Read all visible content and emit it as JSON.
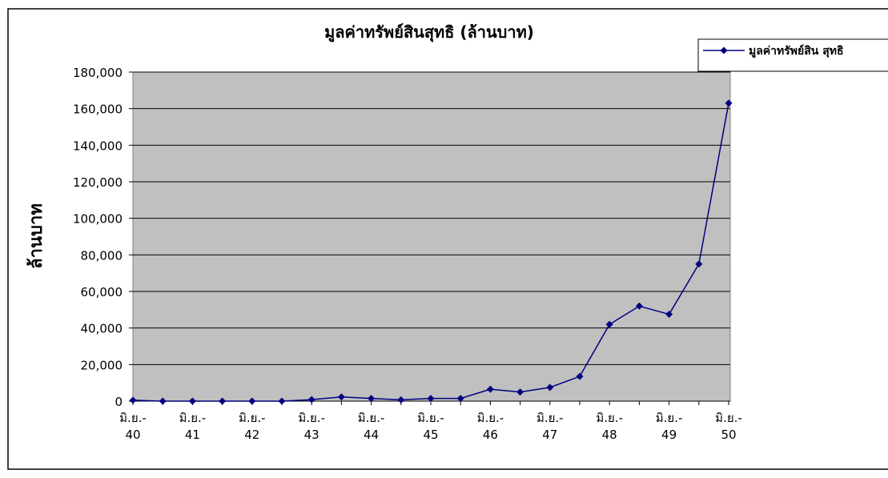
{
  "chart_data": {
    "type": "line",
    "title": "มูลค่าทรัพย์สินสุทธิ (ล้านบาท)",
    "y_label": "ล้านบาท",
    "categories": [
      "มิ.ย.-\n40",
      null,
      "มิ.ย.-\n41",
      null,
      "มิ.ย.-\n42",
      null,
      "มิ.ย.-\n43",
      null,
      "มิ.ย.-\n44",
      null,
      "มิ.ย.-\n45",
      null,
      "มิ.ย.-\n46",
      null,
      "มิ.ย.-\n47",
      null,
      "มิ.ย.-\n48",
      null,
      "มิ.ย.-\n49",
      null,
      "มิ.ย.-\n50"
    ],
    "series": [
      {
        "name": "มูลค่าทรัพย์สิน สุทธิ",
        "color": "#000080",
        "values": [
          500,
          0,
          0,
          0,
          0,
          0,
          800,
          2300,
          1500,
          700,
          1500,
          1500,
          6500,
          5000,
          7500,
          13500,
          42000,
          52000,
          47500,
          75000,
          163000
        ]
      }
    ],
    "ylim": [
      0,
      180000
    ],
    "yticks": [
      0,
      {
        "value": 20000,
        "label": "20,000"
      },
      {
        "value": 40000,
        "label": "40,000"
      },
      {
        "value": 60000,
        "label": "60,000"
      },
      {
        "value": 80000,
        "label": "80,000"
      },
      {
        "value": 100000,
        "label": "100,000"
      },
      {
        "value": 120000,
        "label": "120,000"
      },
      {
        "value": 140000,
        "label": "140,000"
      },
      {
        "value": 160000,
        "label": "160,000"
      },
      {
        "value": 180000,
        "label": "180,000"
      }
    ],
    "grid": true,
    "legend": "top-right",
    "plot_color": "#c0c0c0"
  }
}
